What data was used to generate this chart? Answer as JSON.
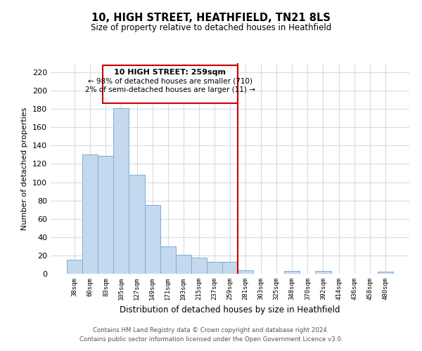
{
  "title": "10, HIGH STREET, HEATHFIELD, TN21 8LS",
  "subtitle": "Size of property relative to detached houses in Heathfield",
  "xlabel": "Distribution of detached houses by size in Heathfield",
  "ylabel": "Number of detached properties",
  "bar_labels": [
    "38sqm",
    "60sqm",
    "83sqm",
    "105sqm",
    "127sqm",
    "149sqm",
    "171sqm",
    "193sqm",
    "215sqm",
    "237sqm",
    "259sqm",
    "281sqm",
    "303sqm",
    "325sqm",
    "348sqm",
    "370sqm",
    "392sqm",
    "414sqm",
    "436sqm",
    "458sqm",
    "480sqm"
  ],
  "bar_heights": [
    15,
    130,
    129,
    181,
    108,
    75,
    30,
    21,
    18,
    13,
    13,
    4,
    0,
    0,
    3,
    0,
    3,
    0,
    0,
    0,
    2
  ],
  "bar_color": "#c5d9ee",
  "bar_edge_color": "#7aadd4",
  "vline_color": "#cc0000",
  "ylim": [
    0,
    230
  ],
  "yticks": [
    0,
    20,
    40,
    60,
    80,
    100,
    120,
    140,
    160,
    180,
    200,
    220
  ],
  "annotation_title": "10 HIGH STREET: 259sqm",
  "annotation_line1": "← 98% of detached houses are smaller (710)",
  "annotation_line2": "2% of semi-detached houses are larger (11) →",
  "footer_line1": "Contains HM Land Registry data © Crown copyright and database right 2024.",
  "footer_line2": "Contains public sector information licensed under the Open Government Licence v3.0.",
  "bg_color": "#ffffff",
  "grid_color": "#d0dde8"
}
